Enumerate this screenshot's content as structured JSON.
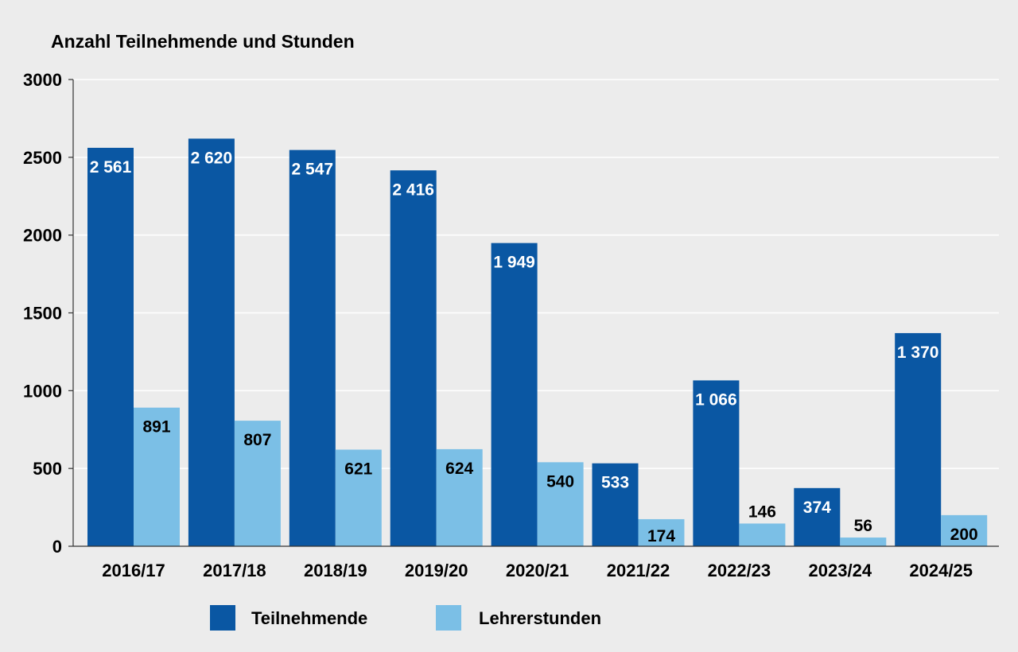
{
  "chart_data": {
    "type": "bar",
    "title": "Anzahl Teilnehmende und Stunden",
    "xlabel": "",
    "ylabel": "",
    "ylim": [
      0,
      3000
    ],
    "yticks": [
      0,
      500,
      1000,
      1500,
      2000,
      2500,
      3000
    ],
    "grid": true,
    "legend_position": "bottom",
    "categories": [
      "2016/17",
      "2017/18",
      "2018/19",
      "2019/20",
      "2020/21",
      "2021/22",
      "2022/23",
      "2023/24",
      "2024/25"
    ],
    "series": [
      {
        "name": "Teilnehmende",
        "color": "#0a57a3",
        "values": [
          2561,
          2620,
          2547,
          2416,
          1949,
          533,
          1066,
          374,
          1370
        ],
        "labels": [
          "2 561",
          "2 620",
          "2 547",
          "2 416",
          "1 949",
          "533",
          "1 066",
          "374",
          "1 370"
        ]
      },
      {
        "name": "Lehrerstunden",
        "color": "#7bbfe6",
        "values": [
          891,
          807,
          621,
          624,
          540,
          174,
          146,
          56,
          200
        ],
        "labels": [
          "891",
          "807",
          "621",
          "624",
          "540",
          "174",
          "146",
          "56",
          "200"
        ]
      }
    ]
  }
}
